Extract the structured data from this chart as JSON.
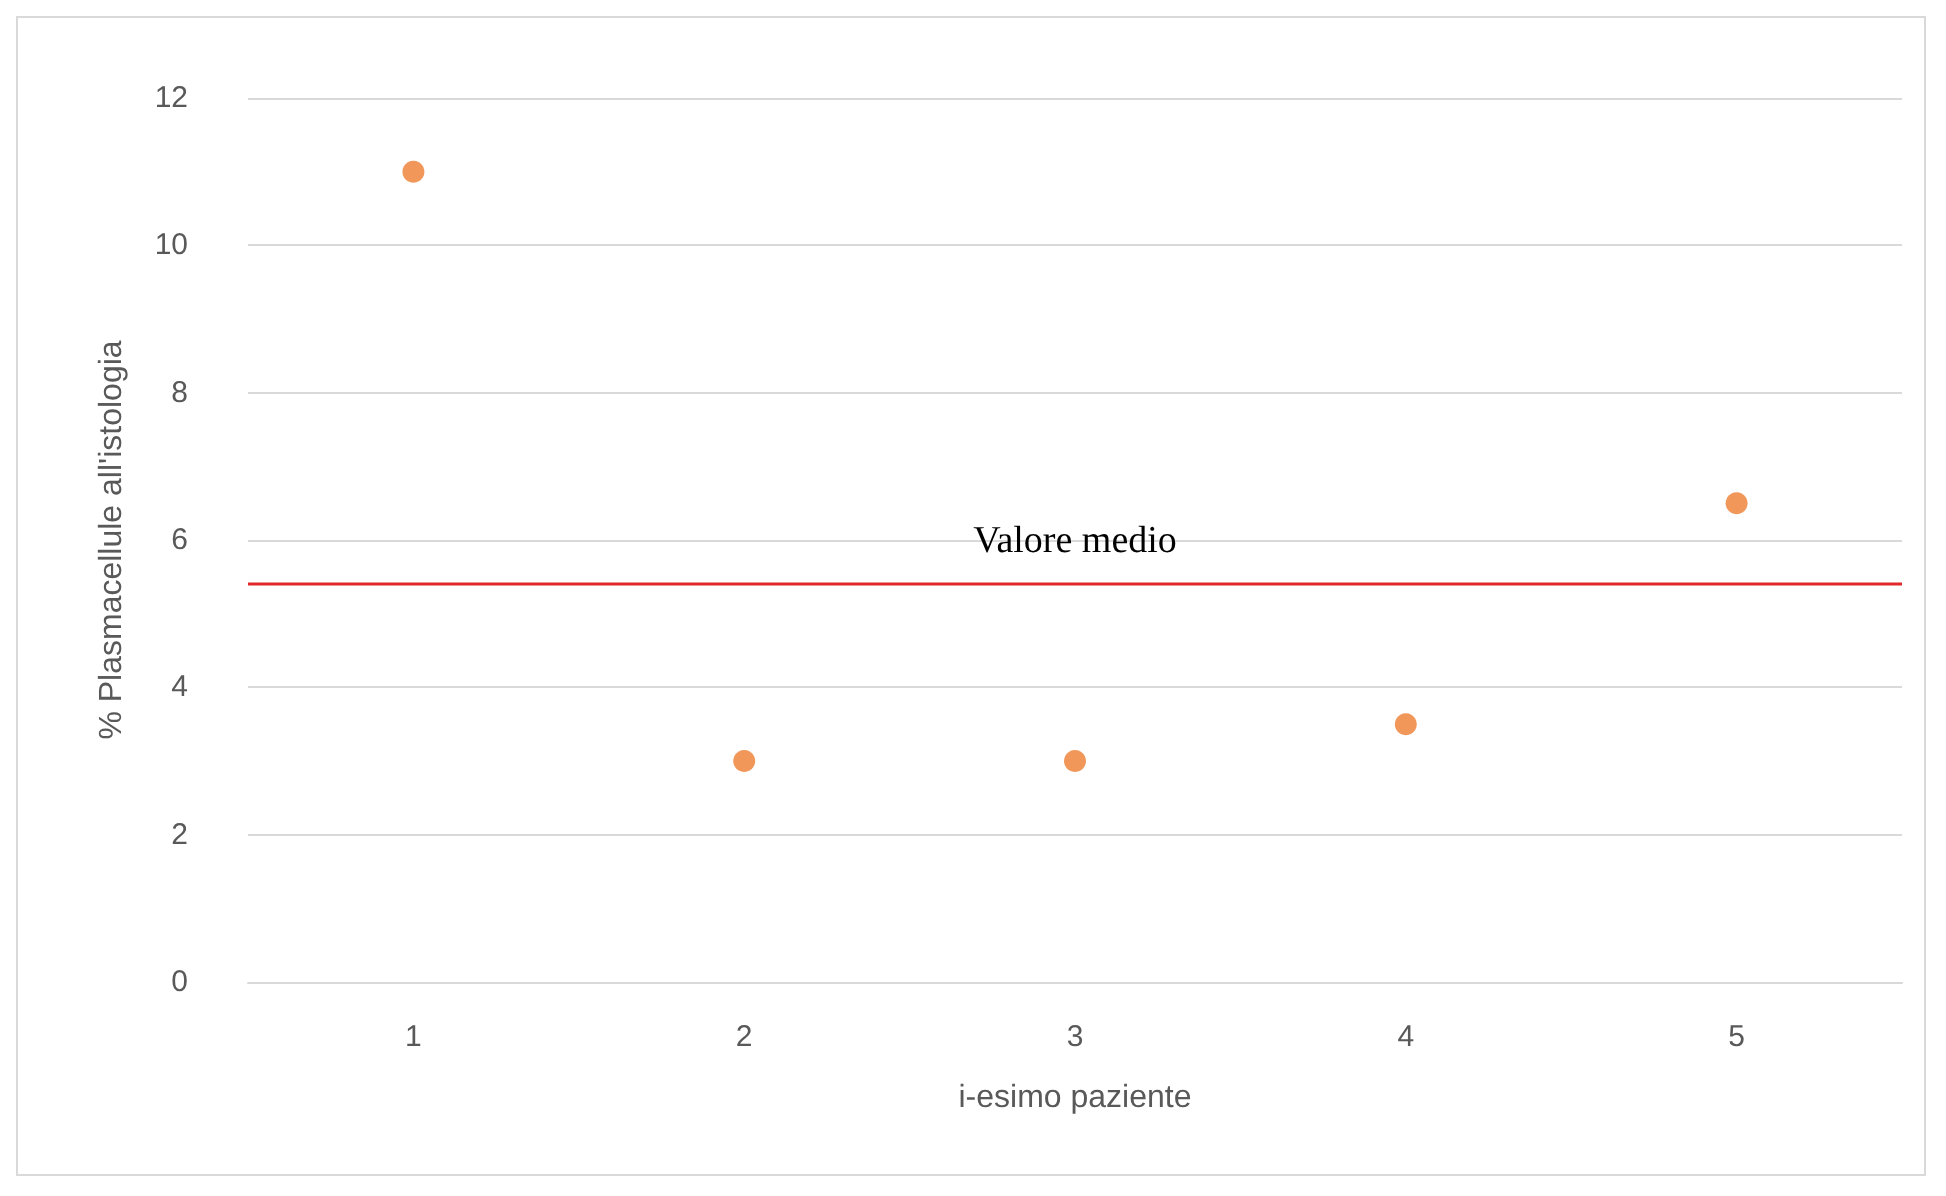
{
  "chart_data": {
    "type": "scatter",
    "xlabel": "i-esimo paziente",
    "ylabel": "% Plasmacellule all'istologia",
    "categories": [
      "1",
      "2",
      "3",
      "4",
      "5"
    ],
    "series": [
      {
        "color": "#ed7d31",
        "values": [
          11,
          3,
          3,
          3.5,
          6.5
        ]
      }
    ],
    "ylim": [
      0,
      12
    ],
    "yticks": [
      0,
      2,
      4,
      6,
      8,
      10,
      12
    ],
    "grid": "y",
    "marker": "circle",
    "ref_lines": [
      {
        "axis": "y",
        "value": 5.4,
        "label": "Valore medio",
        "color": "#e0272b",
        "line_style": "solid"
      }
    ]
  }
}
